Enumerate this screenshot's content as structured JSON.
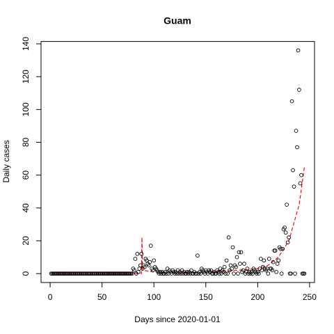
{
  "chart_data": {
    "type": "scatter",
    "title": "Guam",
    "x_label": "Days since 2020-01-01",
    "y_label": "Daily cases",
    "x": [
      1,
      2,
      3,
      4,
      5,
      6,
      7,
      8,
      9,
      10,
      11,
      12,
      13,
      14,
      15,
      16,
      17,
      18,
      19,
      20,
      21,
      22,
      23,
      24,
      25,
      26,
      27,
      28,
      29,
      30,
      31,
      32,
      33,
      34,
      35,
      36,
      37,
      38,
      39,
      40,
      41,
      42,
      43,
      44,
      45,
      46,
      47,
      48,
      49,
      50,
      51,
      52,
      53,
      54,
      55,
      56,
      57,
      58,
      59,
      60,
      61,
      62,
      63,
      64,
      65,
      66,
      67,
      68,
      69,
      70,
      71,
      72,
      73,
      74,
      75,
      76,
      77,
      78,
      79,
      80,
      81,
      82,
      83,
      84,
      85,
      86,
      87,
      88,
      89,
      90,
      91,
      92,
      93,
      94,
      95,
      96,
      97,
      98,
      99,
      100,
      101,
      102,
      103,
      104,
      105,
      106,
      107,
      108,
      109,
      110,
      111,
      112,
      113,
      114,
      115,
      116,
      117,
      118,
      119,
      120,
      121,
      122,
      123,
      124,
      125,
      126,
      127,
      128,
      129,
      130,
      131,
      132,
      133,
      134,
      135,
      136,
      137,
      138,
      139,
      140,
      141,
      142,
      143,
      144,
      145,
      146,
      147,
      148,
      149,
      150,
      151,
      152,
      153,
      154,
      155,
      156,
      157,
      158,
      159,
      160,
      161,
      162,
      163,
      164,
      165,
      166,
      167,
      168,
      169,
      170,
      171,
      172,
      173,
      174,
      175,
      176,
      177,
      178,
      179,
      180,
      181,
      182,
      183,
      184,
      185,
      186,
      187,
      188,
      189,
      190,
      191,
      192,
      193,
      194,
      195,
      196,
      197,
      198,
      199,
      200,
      201,
      202,
      203,
      204,
      205,
      206,
      207,
      208,
      209,
      210,
      211,
      212,
      213,
      214,
      215,
      216,
      217,
      218,
      219,
      220,
      221,
      222,
      223,
      224,
      225,
      226,
      227,
      228,
      229,
      230,
      231,
      232,
      233,
      234,
      235,
      236,
      237,
      238,
      239,
      240,
      241,
      242,
      243,
      244,
      245
    ],
    "values": [
      0,
      0,
      0,
      0,
      0,
      0,
      0,
      0,
      0,
      0,
      0,
      0,
      0,
      0,
      0,
      0,
      0,
      0,
      0,
      0,
      0,
      0,
      0,
      0,
      0,
      0,
      0,
      0,
      0,
      0,
      0,
      0,
      0,
      0,
      0,
      0,
      0,
      0,
      0,
      0,
      0,
      0,
      0,
      0,
      0,
      0,
      0,
      0,
      0,
      0,
      0,
      0,
      0,
      0,
      0,
      0,
      0,
      0,
      0,
      0,
      0,
      0,
      0,
      0,
      0,
      0,
      0,
      0,
      0,
      0,
      0,
      0,
      0,
      0,
      0,
      0,
      0,
      0,
      0,
      3,
      2,
      9,
      0,
      12,
      1,
      3,
      5,
      12,
      3,
      5,
      4,
      9,
      8,
      6,
      5,
      7,
      17,
      3,
      2,
      8,
      4,
      3,
      2,
      1,
      0,
      1,
      0,
      1,
      0,
      0,
      1,
      0,
      3,
      0,
      2,
      1,
      0,
      2,
      1,
      0,
      1,
      0,
      2,
      0,
      1,
      0,
      2,
      0,
      1,
      0,
      0,
      1,
      0,
      1,
      0,
      2,
      0,
      0,
      1,
      0,
      0,
      11,
      0,
      1,
      0,
      3,
      2,
      1,
      0,
      2,
      1,
      0,
      2,
      1,
      2,
      0,
      0,
      1,
      0,
      0,
      2,
      1,
      0,
      3,
      0,
      2,
      1,
      4,
      0,
      8,
      0,
      22,
      2,
      5,
      3,
      16,
      0,
      5,
      4,
      10,
      0,
      13,
      6,
      13,
      1,
      2,
      6,
      0,
      1,
      3,
      0,
      1,
      0,
      1,
      0,
      3,
      2,
      1,
      0,
      1,
      0,
      3,
      9,
      2,
      4,
      8,
      3,
      2,
      3,
      0,
      9,
      3,
      3,
      2,
      7,
      14,
      14,
      1,
      6,
      8,
      16,
      15,
      0,
      15,
      27,
      28,
      25,
      42,
      19,
      22,
      0,
      0,
      105,
      63,
      53,
      0,
      87,
      77,
      136,
      112,
      55,
      60,
      0,
      0,
      0
    ],
    "color": "#000000",
    "fit": {
      "color": "#ff0000",
      "x": [
        1,
        85,
        88,
        88.5,
        89,
        100,
        150,
        180,
        200,
        210,
        220,
        230,
        240,
        245
      ],
      "values": [
        0,
        0,
        0,
        22,
        2,
        1,
        1,
        2,
        3,
        5,
        10,
        20,
        42,
        65
      ]
    },
    "xlim": [
      -8.76,
      254.76
    ],
    "ylim": [
      -5.44,
      141.44
    ],
    "xticks": [
      0,
      50,
      100,
      150,
      200,
      250
    ],
    "yticks": [
      0,
      20,
      40,
      60,
      80,
      100,
      120,
      140
    ]
  }
}
